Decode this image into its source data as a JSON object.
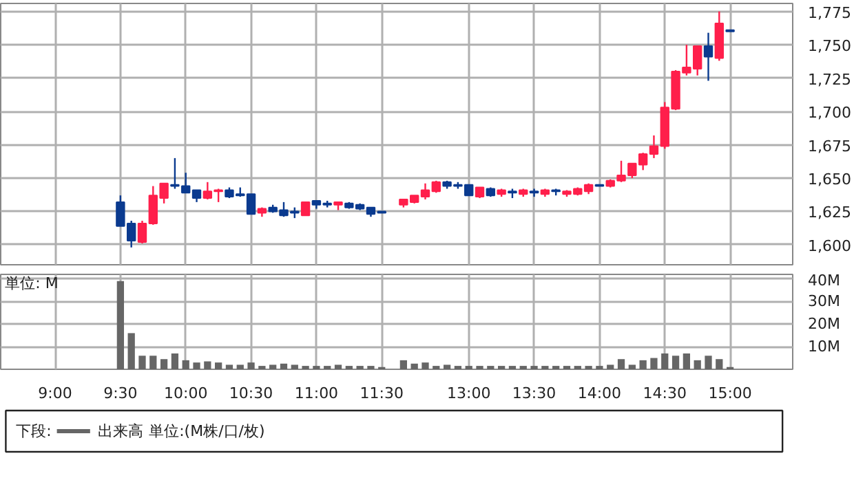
{
  "chart_data": [
    {
      "type": "candlestick",
      "categories": [
        null,
        null,
        null,
        null,
        null,
        null,
        null,
        null,
        null,
        null,
        null,
        null,
        null,
        null,
        null,
        null,
        null,
        null,
        null,
        null,
        null,
        null,
        null,
        null,
        null,
        null,
        null,
        null,
        null,
        null,
        null,
        null,
        null,
        null,
        null,
        null,
        null,
        null,
        null,
        null,
        null,
        null,
        null,
        null,
        null,
        null,
        null,
        null,
        null,
        null,
        null,
        null,
        null,
        null,
        null,
        null,
        null,
        null,
        null,
        null,
        null,
        null,
        null
      ],
      "ohlc": [
        null,
        null,
        null,
        null,
        null,
        null,
        [
          1632,
          1637,
          1614,
          1614
        ],
        [
          1616,
          1618,
          1598,
          1603
        ],
        [
          1602,
          1618,
          1601,
          1616
        ],
        [
          1616,
          1644,
          1615,
          1637
        ],
        [
          1635,
          1646,
          1631,
          1646
        ],
        [
          1645,
          1665,
          1642,
          1644
        ],
        [
          1644,
          1654,
          1639,
          1639
        ],
        [
          1641,
          1641,
          1632,
          1635
        ],
        [
          1635,
          1647,
          1634,
          1640
        ],
        [
          1640,
          1642,
          1632,
          1641
        ],
        [
          1641,
          1643,
          1635,
          1636
        ],
        [
          1638,
          1643,
          1636,
          1637
        ],
        [
          1638,
          1638,
          1623,
          1623
        ],
        [
          1624,
          1628,
          1621,
          1627
        ],
        [
          1628,
          1630,
          1624,
          1625
        ],
        [
          1626,
          1632,
          1621,
          1622
        ],
        [
          1625,
          1628,
          1620,
          1624
        ],
        [
          1622,
          1632,
          1622,
          1632
        ],
        [
          1633,
          1633,
          1627,
          1630
        ],
        [
          1631,
          1633,
          1628,
          1630
        ],
        [
          1630,
          1632,
          1626,
          1632
        ],
        [
          1631,
          1632,
          1627,
          1628
        ],
        [
          1630,
          1631,
          1626,
          1627
        ],
        [
          1628,
          1628,
          1621,
          1623
        ],
        [
          1625,
          1625,
          1624,
          1624
        ],
        null,
        [
          1630,
          1634,
          1628,
          1634
        ],
        [
          1632,
          1637,
          1631,
          1637
        ],
        [
          1636,
          1646,
          1634,
          1641
        ],
        [
          1640,
          1648,
          1639,
          1647
        ],
        [
          1647,
          1648,
          1642,
          1644
        ],
        [
          1645,
          1647,
          1642,
          1644
        ],
        [
          1645,
          1645,
          1637,
          1637
        ],
        [
          1636,
          1643,
          1635,
          1643
        ],
        [
          1642,
          1643,
          1636,
          1637
        ],
        [
          1638,
          1642,
          1636,
          1641
        ],
        [
          1640,
          1642,
          1635,
          1639
        ],
        [
          1638,
          1642,
          1636,
          1641
        ],
        [
          1640,
          1642,
          1636,
          1639
        ],
        [
          1638,
          1642,
          1636,
          1641
        ],
        [
          1641,
          1642,
          1637,
          1640
        ],
        [
          1638,
          1641,
          1636,
          1640
        ],
        [
          1638,
          1643,
          1637,
          1642
        ],
        [
          1640,
          1646,
          1638,
          1645
        ],
        [
          1645,
          1645,
          1644,
          1644
        ],
        [
          1644,
          1649,
          1643,
          1648
        ],
        [
          1648,
          1663,
          1647,
          1652
        ],
        [
          1652,
          1661,
          1650,
          1661
        ],
        [
          1660,
          1669,
          1656,
          1668
        ],
        [
          1668,
          1682,
          1665,
          1674
        ],
        [
          1674,
          1707,
          1672,
          1703
        ],
        [
          1702,
          1731,
          1701,
          1730
        ],
        [
          1729,
          1750,
          1727,
          1733
        ],
        [
          1732,
          1749,
          1727,
          1749
        ],
        [
          1749,
          1759,
          1723,
          1741
        ],
        [
          1740,
          1775,
          1738,
          1766
        ],
        [
          1761,
          1761,
          1760,
          1760
        ]
      ],
      "colors": [
        null,
        null,
        null,
        null,
        null,
        null,
        "#0a3a8f",
        "#0a3a8f",
        "#ff1f4b",
        "#ff1f4b",
        "#ff1f4b",
        "#0a3a8f",
        "#0a3a8f",
        "#0a3a8f",
        "#ff1f4b",
        "#ff1f4b",
        "#0a3a8f",
        "#0a3a8f",
        "#0a3a8f",
        "#ff1f4b",
        "#0a3a8f",
        "#0a3a8f",
        "#0a3a8f",
        "#ff1f4b",
        "#0a3a8f",
        "#0a3a8f",
        "#ff1f4b",
        "#0a3a8f",
        "#0a3a8f",
        "#0a3a8f",
        "#0a3a8f",
        null,
        "#ff1f4b",
        "#ff1f4b",
        "#ff1f4b",
        "#ff1f4b",
        "#0a3a8f",
        "#0a3a8f",
        "#0a3a8f",
        "#ff1f4b",
        "#0a3a8f",
        "#ff1f4b",
        "#0a3a8f",
        "#ff1f4b",
        "#0a3a8f",
        "#ff1f4b",
        "#0a3a8f",
        "#ff1f4b",
        "#ff1f4b",
        "#ff1f4b",
        "#0a3a8f",
        "#ff1f4b",
        "#ff1f4b",
        "#ff1f4b",
        "#ff1f4b",
        "#ff1f4b",
        "#ff1f4b",
        "#ff1f4b",
        "#ff1f4b",
        "#ff1f4b",
        "#0a3a8f",
        "#ff1f4b",
        "#0a3a8f"
      ],
      "ylim": [
        1585,
        1781
      ],
      "yticks": [
        {
          "value": 1600,
          "label": "1,600"
        },
        {
          "value": 1625,
          "label": "1,625"
        },
        {
          "value": 1650,
          "label": "1,650"
        },
        {
          "value": 1675,
          "label": "1,675"
        },
        {
          "value": 1700,
          "label": "1,700"
        },
        {
          "value": 1725,
          "label": "1,725"
        },
        {
          "value": 1750,
          "label": "1,750"
        },
        {
          "value": 1775,
          "label": "1,775"
        }
      ],
      "grid": true,
      "tick_labels": "y"
    },
    {
      "type": "bar",
      "categories": [
        "9:00",
        null,
        null,
        null,
        null,
        null,
        "9:30",
        null,
        null,
        null,
        null,
        null,
        "10:00",
        null,
        null,
        null,
        null,
        null,
        "10:30",
        null,
        null,
        null,
        null,
        null,
        "11:00",
        null,
        null,
        null,
        null,
        null,
        "11:30",
        null,
        null,
        null,
        null,
        null,
        null,
        null,
        "13:00",
        null,
        null,
        null,
        null,
        null,
        "13:30",
        null,
        null,
        null,
        null,
        null,
        "14:00",
        null,
        null,
        null,
        null,
        null,
        "14:30",
        null,
        null,
        null,
        null,
        null,
        "15:00"
      ],
      "series": [
        {
          "name": "出来高",
          "color": "#666666",
          "values": [
            null,
            null,
            null,
            null,
            null,
            null,
            39,
            16,
            6,
            6,
            4.5,
            7,
            4,
            3,
            3.5,
            3,
            2,
            2,
            3,
            1.5,
            2,
            2.5,
            2,
            1.5,
            1.5,
            1.5,
            2,
            1.5,
            1.5,
            1.5,
            1,
            null,
            4,
            2.5,
            3,
            1.5,
            2,
            1.5,
            1.5,
            1.5,
            1.5,
            1.5,
            1.5,
            1.5,
            1.5,
            1.5,
            1.5,
            1.5,
            1.5,
            1.5,
            1.5,
            2,
            4.5,
            2,
            4,
            5,
            7,
            6,
            7,
            4,
            6,
            4.5,
            1
          ]
        }
      ],
      "ylim": [
        0,
        42
      ],
      "yticks": [
        {
          "value": 10,
          "label": "10M"
        },
        {
          "value": 20,
          "label": "20M"
        },
        {
          "value": 30,
          "label": "30M"
        },
        {
          "value": 40,
          "label": "40M"
        }
      ],
      "grid": true,
      "legend": "bottom",
      "legend_title": "下段:",
      "annotations": [
        "単位: M",
        "単位:(M株/口/枚)"
      ]
    }
  ]
}
